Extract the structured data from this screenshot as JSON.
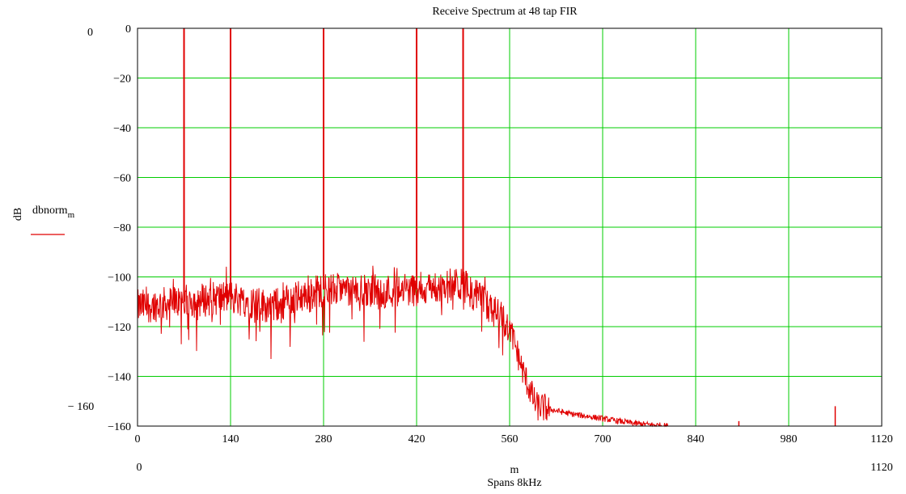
{
  "chart_data": {
    "type": "line",
    "title": "Receive Spectrum at  48 tap FIR",
    "xlabel": "m",
    "xlabel_sub": "Spans 8kHz",
    "ylabel": "dB",
    "xlim": [
      0,
      1120
    ],
    "ylim": [
      -160,
      0
    ],
    "x_ticks": [
      0,
      140,
      280,
      420,
      560,
      700,
      840,
      980,
      1120
    ],
    "x_tick_labels": [
      "0",
      "140",
      "280",
      "420",
      "560",
      "700",
      "840",
      "980",
      "1120"
    ],
    "y_ticks": [
      0,
      -20,
      -40,
      -60,
      -80,
      -100,
      -120,
      -140,
      -160
    ],
    "y_tick_labels": [
      "0",
      "−20",
      "−40",
      "−60",
      "−80",
      "−100",
      "−120",
      "−140",
      "−160"
    ],
    "grid": true,
    "grid_color": "#00cc00",
    "range_labels": {
      "y_top": "0",
      "y_bottom": "− 160",
      "x_left": "0",
      "x_right": "1120"
    },
    "series": [
      {
        "name": "dbnorm",
        "name_sub": "m",
        "color": "#e00000",
        "peaks": [
          {
            "x": 70,
            "y": 0
          },
          {
            "x": 140,
            "y": 0
          },
          {
            "x": 280,
            "y": 0
          },
          {
            "x": 420,
            "y": 0
          },
          {
            "x": 490,
            "y": 0
          }
        ],
        "envelope": [
          {
            "x": 0,
            "y": -112
          },
          {
            "x": 70,
            "y": -110
          },
          {
            "x": 140,
            "y": -108
          },
          {
            "x": 200,
            "y": -112
          },
          {
            "x": 280,
            "y": -105
          },
          {
            "x": 350,
            "y": -106
          },
          {
            "x": 420,
            "y": -105
          },
          {
            "x": 490,
            "y": -103
          },
          {
            "x": 540,
            "y": -115
          },
          {
            "x": 560,
            "y": -120
          },
          {
            "x": 580,
            "y": -138
          },
          {
            "x": 600,
            "y": -152
          },
          {
            "x": 650,
            "y": -155
          },
          {
            "x": 700,
            "y": -157
          },
          {
            "x": 750,
            "y": -159
          },
          {
            "x": 800,
            "y": -160
          }
        ],
        "small_spikes": [
          {
            "x": 905,
            "y": -158
          },
          {
            "x": 1050,
            "y": -152
          }
        ]
      }
    ]
  }
}
